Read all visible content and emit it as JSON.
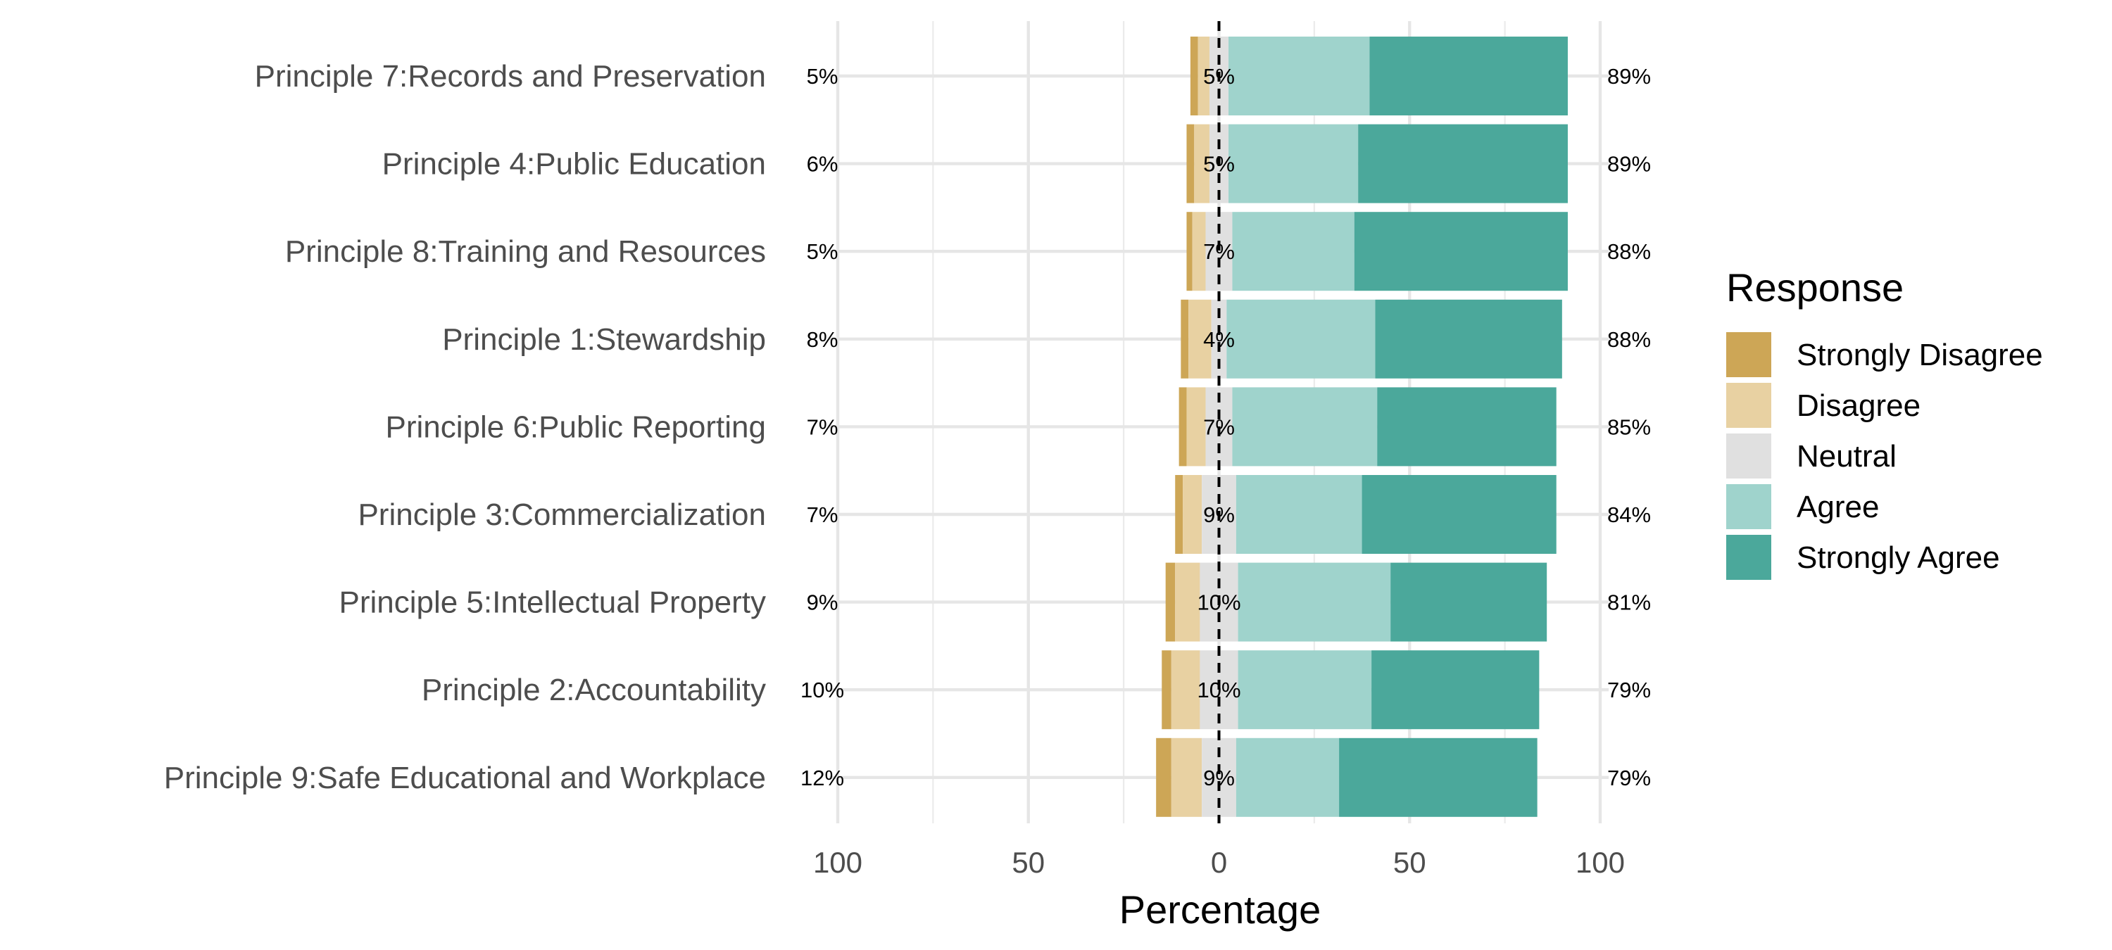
{
  "chart_data": {
    "type": "bar",
    "orientation": "horizontal",
    "stacking": "diverging",
    "xlabel": "Percentage",
    "xlim": [
      -100,
      100
    ],
    "x_ticks": [
      -100,
      -50,
      0,
      50,
      100
    ],
    "x_tick_labels": [
      "100",
      "50",
      "0",
      "50",
      "100"
    ],
    "grid": true,
    "legend": {
      "title": "Response",
      "placement": "right",
      "entries": [
        "Strongly Disagree",
        "Disagree",
        "Neutral",
        "Agree",
        "Strongly Agree"
      ]
    },
    "colors": {
      "Strongly Disagree": "#CDA656",
      "Disagree": "#E8D1A2",
      "Neutral": "#E0E0E0",
      "Agree": "#9FD3CC",
      "Strongly Agree": "#4BA89B"
    },
    "categories": [
      "Principle 7:Records and Preservation",
      "Principle 4:Public Education",
      "Principle 8:Training and Resources",
      "Principle 1:Stewardship",
      "Principle 6:Public Reporting",
      "Principle 3:Commercialization",
      "Principle 5:Intellectual Property",
      "Principle 2:Accountability",
      "Principle 9:Safe Educational and Workplace"
    ],
    "series": [
      {
        "name": "Strongly Disagree",
        "values": [
          2,
          2,
          1.5,
          2,
          2,
          2,
          2.5,
          2.5,
          4
        ]
      },
      {
        "name": "Disagree",
        "values": [
          3,
          4,
          3.5,
          6,
          5,
          5,
          6.5,
          7.5,
          8
        ]
      },
      {
        "name": "Neutral",
        "values": [
          5,
          5,
          7,
          4,
          7,
          9,
          10,
          10,
          9
        ]
      },
      {
        "name": "Agree",
        "values": [
          37,
          34,
          32,
          39,
          38,
          33,
          40,
          35,
          27
        ]
      },
      {
        "name": "Strongly Agree",
        "values": [
          52,
          55,
          56,
          49,
          47,
          51,
          41,
          44,
          52
        ]
      }
    ],
    "left_labels": [
      "5%",
      "6%",
      "5%",
      "8%",
      "7%",
      "7%",
      "9%",
      "10%",
      "12%"
    ],
    "center_labels": [
      "5%",
      "5%",
      "7%",
      "4%",
      "7%",
      "9%",
      "10%",
      "10%",
      "9%"
    ],
    "right_labels": [
      "89%",
      "89%",
      "88%",
      "88%",
      "85%",
      "84%",
      "81%",
      "79%",
      "79%"
    ]
  }
}
